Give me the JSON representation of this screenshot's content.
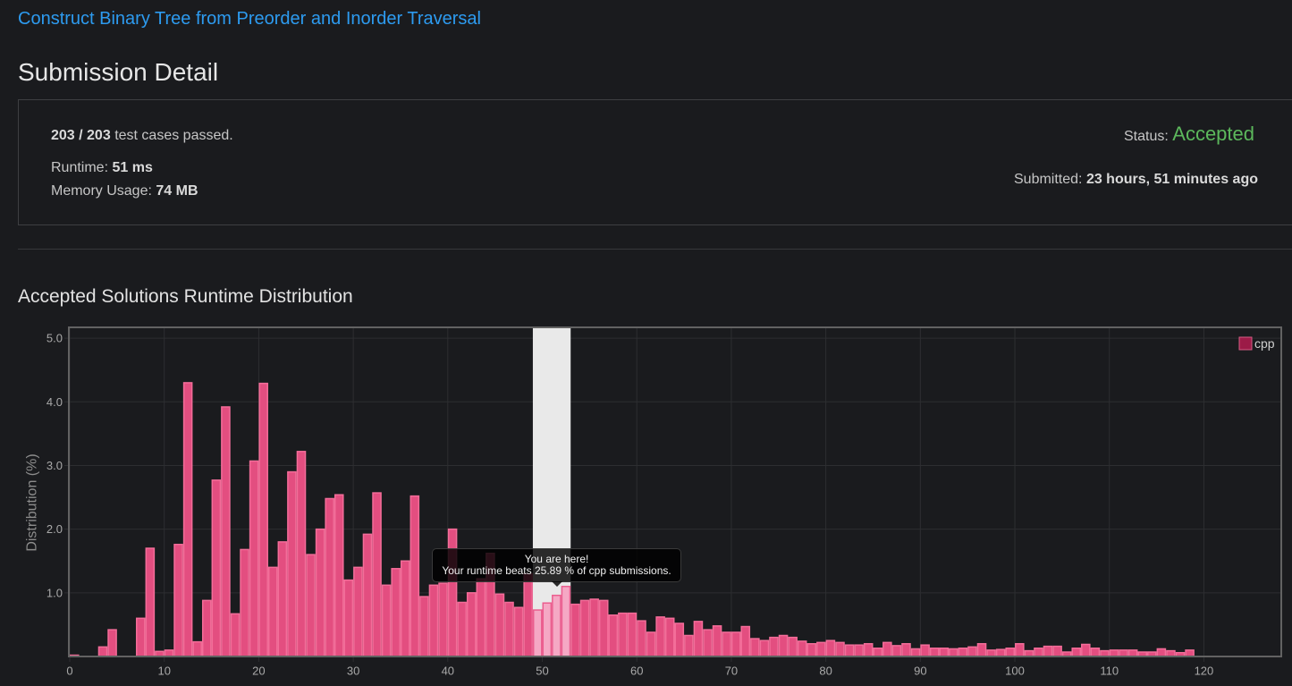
{
  "problem": {
    "title": "Construct Binary Tree from Preorder and Inorder Traversal"
  },
  "page": {
    "heading": "Submission Detail"
  },
  "summary": {
    "passed": "203 / 203",
    "passed_suffix": "test cases passed.",
    "runtime_label": "Runtime:",
    "runtime_value": "51 ms",
    "memory_label": "Memory Usage:",
    "memory_value": "74 MB",
    "status_label": "Status:",
    "status_value": "Accepted",
    "submitted_label": "Submitted:",
    "submitted_value": "23 hours, 51 minutes ago"
  },
  "distribution": {
    "heading": "Accepted Solutions Runtime Distribution",
    "tooltip": {
      "title": "You are here!",
      "body": "Your runtime beats 25.89 % of cpp submissions."
    }
  },
  "colors": {
    "link": "#2d9bf0",
    "status_accepted": "#5cb85c",
    "bar_fill": "#e34e80",
    "bar_border": "#f36d99",
    "bar_highlight_fill": "#f5a8c4",
    "bar_highlight_border": "#eb5e8f",
    "legend_swatch": "#9c1b47",
    "legend_swatch_border": "#d45c84",
    "highlight_band": "#e9e9e9",
    "grid": "#2d2e31",
    "frame": "#626262"
  },
  "chart_data": {
    "type": "bar",
    "ylabel": "Distribution (%)",
    "xlim": [
      0,
      128
    ],
    "ylim": [
      0,
      5.17
    ],
    "xticks": [
      "0",
      "10",
      "20",
      "30",
      "40",
      "50",
      "60",
      "70",
      "80",
      "90",
      "100",
      "110",
      "120"
    ],
    "yticks": [
      "1.0",
      "2.0",
      "3.0",
      "4.0",
      "5.0"
    ],
    "grid": true,
    "legend_position": "top-right",
    "highlight_range": [
      49,
      53
    ],
    "x": [
      0,
      1,
      2,
      3,
      4,
      5,
      6,
      7,
      8,
      9,
      10,
      11,
      12,
      13,
      14,
      15,
      16,
      17,
      18,
      19,
      20,
      21,
      22,
      23,
      24,
      25,
      26,
      27,
      28,
      29,
      30,
      31,
      32,
      33,
      34,
      35,
      36,
      37,
      38,
      39,
      40,
      41,
      42,
      43,
      44,
      45,
      46,
      47,
      48,
      49,
      50,
      51,
      52,
      53,
      54,
      55,
      56,
      57,
      58,
      59,
      60,
      61,
      62,
      63,
      64,
      65,
      66,
      67,
      68,
      69,
      70,
      71,
      72,
      73,
      74,
      75,
      76,
      77,
      78,
      79,
      80,
      81,
      82,
      83,
      84,
      85,
      86,
      87,
      88,
      89,
      90,
      91,
      92,
      93,
      94,
      95,
      96,
      97,
      98,
      99,
      100,
      101,
      102,
      103,
      104,
      105,
      106,
      107,
      108,
      109,
      110,
      111,
      112,
      113,
      114,
      115,
      116,
      117,
      118
    ],
    "series": [
      {
        "name": "cpp",
        "values": [
          0.02,
          0,
          0,
          0.15,
          0.42,
          0,
          0,
          0.6,
          1.7,
          0.08,
          0.1,
          1.76,
          4.3,
          0.23,
          0.88,
          2.77,
          3.92,
          0.67,
          1.68,
          3.07,
          4.29,
          1.4,
          1.8,
          2.9,
          3.22,
          1.6,
          2.0,
          2.48,
          2.54,
          1.2,
          1.4,
          1.92,
          2.57,
          1.12,
          1.38,
          1.5,
          2.52,
          0.94,
          1.12,
          1.15,
          2.0,
          0.85,
          1.0,
          1.22,
          1.62,
          0.98,
          0.85,
          0.77,
          1.3,
          0.73,
          0.84,
          0.96,
          1.1,
          0.82,
          0.88,
          0.9,
          0.88,
          0.65,
          0.68,
          0.68,
          0.56,
          0.38,
          0.62,
          0.6,
          0.52,
          0.33,
          0.55,
          0.42,
          0.48,
          0.38,
          0.38,
          0.47,
          0.28,
          0.25,
          0.3,
          0.33,
          0.3,
          0.24,
          0.2,
          0.22,
          0.25,
          0.22,
          0.18,
          0.18,
          0.2,
          0.13,
          0.22,
          0.17,
          0.2,
          0.12,
          0.18,
          0.13,
          0.13,
          0.12,
          0.13,
          0.15,
          0.2,
          0.1,
          0.11,
          0.13,
          0.2,
          0.09,
          0.13,
          0.16,
          0.16,
          0.07,
          0.13,
          0.19,
          0.13,
          0.09,
          0.1,
          0.1,
          0.1,
          0.07,
          0.07,
          0.12,
          0.09,
          0.06,
          0.1
        ]
      }
    ]
  }
}
